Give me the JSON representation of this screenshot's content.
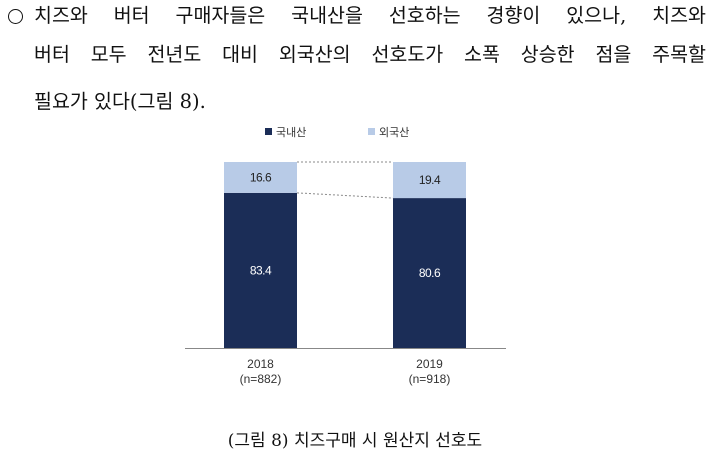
{
  "paragraph": {
    "lines": [
      "치즈와 버터 구매자들은 국내산을 선호하는 경향이 있으나, 치즈와",
      "버터 모두 전년도 대비 외국산의 선호도가 소폭 상승한 점을 주목할",
      "필요가 있다(그림 8)."
    ]
  },
  "caption": "(그림 8) 치즈구매 시 원산지 선호도",
  "colors": {
    "domestic": "#1b2d57",
    "foreign": "#b8cbe7",
    "axis": "#888888",
    "connector": "#8a8a8a"
  },
  "chart_data": {
    "type": "bar",
    "stacked": true,
    "categories": [
      "2018\n(n=882)",
      "2019\n(n=918)"
    ],
    "series": [
      {
        "name": "국내산",
        "values": [
          83.4,
          80.6
        ]
      },
      {
        "name": "외국산",
        "values": [
          16.6,
          19.4
        ]
      }
    ],
    "data_labels": [
      [
        "83.4",
        "80.6"
      ],
      [
        "16.6",
        "19.4"
      ]
    ],
    "ylim": [
      0,
      100
    ],
    "legend_position": "top",
    "grid": false,
    "title": "",
    "xlabel": "",
    "ylabel": ""
  }
}
